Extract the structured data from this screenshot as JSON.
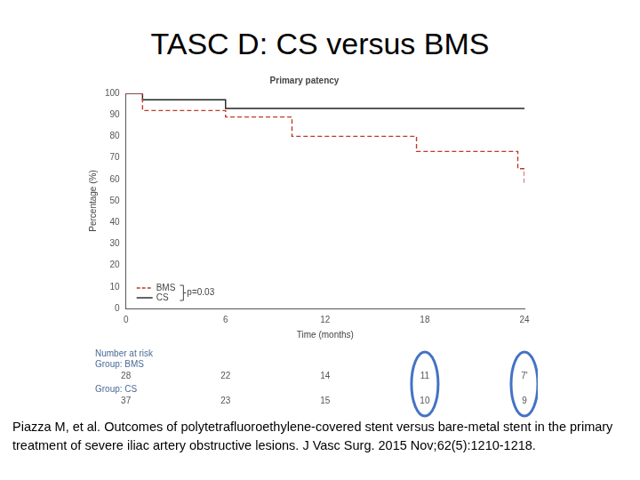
{
  "slide_title": "TASC D: CS versus BMS",
  "citation": "Piazza M, et al. Outcomes of polytetrafluoroethylene-covered stent versus bare-metal stent in the primary treatment of severe iliac artery obstructive lesions. J Vasc Surg. 2015 Nov;62(5):1210-1218.",
  "chart_data": {
    "type": "line",
    "title": "Primary patency",
    "x_label": "Time (months)",
    "y_label": "Percentage (%)",
    "xlim": [
      0,
      24
    ],
    "xticks": [
      0,
      6,
      12,
      18,
      24
    ],
    "ylim": [
      0,
      100
    ],
    "yticks": [
      0,
      10,
      20,
      30,
      40,
      50,
      60,
      70,
      80,
      90,
      100
    ],
    "grid": false,
    "legend": "lower left",
    "series": [
      {
        "name": "BMS",
        "color": "#c0392b",
        "line_style": "dashed",
        "marker": "none",
        "x": [
          0,
          1,
          6,
          10,
          17.5,
          23.6,
          24
        ],
        "values": [
          100,
          92,
          89,
          80,
          73,
          65,
          58
        ]
      },
      {
        "name": "CS",
        "color": "#222222",
        "line_style": "solid",
        "marker": "none",
        "x": [
          0,
          1,
          6,
          24
        ],
        "values": [
          100,
          97,
          93,
          93
        ]
      }
    ],
    "annotations": [
      "p=0.03"
    ],
    "number_at_risk": {
      "title": "Number at risk",
      "times": [
        0,
        6,
        12,
        18,
        24
      ],
      "highlighted_times": [
        18,
        24
      ],
      "groups": [
        {
          "name": "Group: BMS",
          "values": [
            28,
            22,
            14,
            11,
            7
          ],
          "value_labels": [
            "28",
            "22",
            "14",
            "11",
            "7'"
          ]
        },
        {
          "name": "Group: CS",
          "values": [
            37,
            23,
            15,
            10,
            9
          ]
        }
      ]
    }
  }
}
